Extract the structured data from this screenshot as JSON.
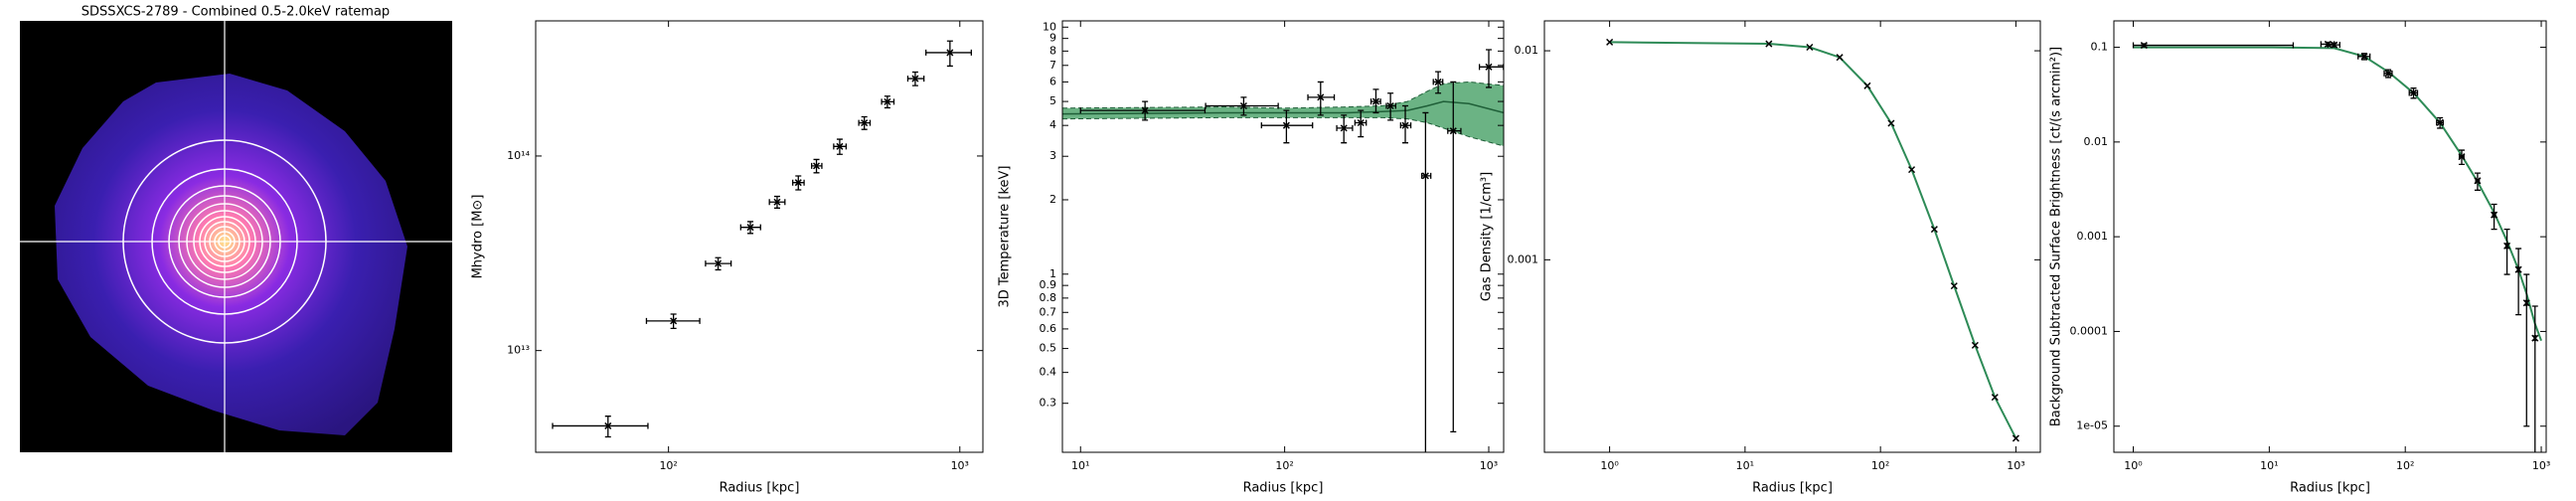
{
  "chart_data": [
    {
      "type": "image",
      "title": "SDSSXCS-2789 - Combined 0.5-2.0keV ratemap"
    },
    {
      "type": "scatter",
      "xlabel": "Radius [kpc]",
      "ylabel": "Mhydro [M⊙]",
      "xscale": "log",
      "yscale": "log",
      "color": "#000000",
      "xlim": [
        35,
        1200
      ],
      "ylim": [
        3000000000000.0,
        495000000000000.0
      ],
      "xticks": [
        {
          "value": 100,
          "label": "10²"
        },
        {
          "value": 1000,
          "label": "10³"
        }
      ],
      "yticks": [
        {
          "value": 10000000000000.0,
          "label": "10¹³"
        },
        {
          "value": 100000000000000.0,
          "label": "10¹⁴"
        }
      ],
      "x": [
        62,
        104,
        148,
        191,
        236,
        279,
        322,
        387,
        470,
        564,
        703,
        925
      ],
      "xerr": [
        [
          22,
          23
        ],
        [
          20,
          24
        ],
        [
          14,
          16
        ],
        [
          14,
          16
        ],
        [
          14,
          15
        ],
        [
          12,
          13
        ],
        [
          12,
          14
        ],
        [
          18,
          20
        ],
        [
          20,
          22
        ],
        [
          25,
          30
        ],
        [
          40,
          50
        ],
        [
          160,
          170
        ]
      ],
      "values": [
        4100000000000.0,
        14200000000000.0,
        28000000000000.0,
        43000000000000.0,
        58000000000000.0,
        73000000000000.0,
        89000000000000.0,
        112000000000000.0,
        148000000000000.0,
        190000000000000.0,
        250000000000000.0,
        340000000000000.0
      ],
      "yerr": [
        [
          500000000000.0,
          500000000000.0
        ],
        [
          1200000000000.0,
          1200000000000.0
        ],
        [
          2000000000000.0,
          2000000000000.0
        ],
        [
          3000000000000.0,
          3000000000000.0
        ],
        [
          4000000000000.0,
          4000000000000.0
        ],
        [
          6000000000000.0,
          6000000000000.0
        ],
        [
          7000000000000.0,
          7000000000000.0
        ],
        [
          10000000000000.0,
          10000000000000.0
        ],
        [
          11000000000000.0,
          11000000000000.0
        ],
        [
          13000000000000.0,
          13000000000000.0
        ],
        [
          20000000000000.0,
          20000000000000.0
        ],
        [
          50000000000000.0,
          50000000000000.0
        ]
      ]
    },
    {
      "type": "scatter",
      "xlabel": "Radius [kpc]",
      "ylabel": "3D Temperature [keV]",
      "xscale": "log",
      "yscale": "log",
      "color": "#000000",
      "xlim": [
        8.15,
        1183
      ],
      "ylim": [
        0.19,
        10.6
      ],
      "xticks": [
        {
          "value": 10,
          "label": "10¹"
        },
        {
          "value": 100,
          "label": "10²"
        },
        {
          "value": 1000,
          "label": "10³"
        }
      ],
      "yticks": [
        0.3,
        0.4,
        0.5,
        0.6,
        0.7,
        0.8,
        0.9,
        1,
        2,
        3,
        4,
        5,
        6,
        7,
        8,
        9,
        10
      ],
      "x": [
        20.7,
        63,
        102,
        150,
        195,
        236,
        280,
        330,
        390,
        490,
        565,
        670,
        1000
      ],
      "xerr": [
        [
          10.7,
          20
        ],
        [
          22,
          30
        ],
        [
          25,
          35
        ],
        [
          20,
          25
        ],
        [
          15,
          20
        ],
        [
          15,
          15
        ],
        [
          15,
          15
        ],
        [
          15,
          20
        ],
        [
          20,
          25
        ],
        [
          20,
          30
        ],
        [
          30,
          30
        ],
        [
          40,
          60
        ],
        [
          100,
          180
        ]
      ],
      "values": [
        4.6,
        4.8,
        4.0,
        5.2,
        3.9,
        4.1,
        5.0,
        4.8,
        4.0,
        2.5,
        6.0,
        3.8,
        6.9
      ],
      "yerr": [
        [
          0.4,
          0.4
        ],
        [
          0.4,
          0.4
        ],
        [
          0.6,
          0.6
        ],
        [
          0.8,
          0.8
        ],
        [
          0.5,
          0.5
        ],
        [
          0.5,
          0.5
        ],
        [
          0.5,
          0.6
        ],
        [
          0.6,
          0.6
        ],
        [
          0.6,
          0.8
        ],
        [
          2.4,
          2.0
        ],
        [
          0.6,
          0.6
        ],
        [
          3.57,
          2.2
        ],
        [
          1.2,
          1.2
        ]
      ],
      "band": {
        "color": "#3a9a5b",
        "x": [
          8.15,
          50,
          100,
          200,
          300,
          400,
          500,
          600,
          800,
          1183
        ],
        "lower": [
          4.25,
          4.3,
          4.3,
          4.3,
          4.3,
          4.25,
          4.1,
          3.9,
          3.6,
          3.3
        ],
        "median": [
          4.45,
          4.5,
          4.5,
          4.5,
          4.55,
          4.6,
          4.8,
          5.0,
          4.9,
          4.5
        ],
        "upper": [
          4.7,
          4.75,
          4.7,
          4.75,
          4.8,
          5.0,
          5.5,
          5.9,
          6.0,
          5.8
        ]
      }
    },
    {
      "type": "line",
      "xlabel": "Radius [kpc]",
      "ylabel": "Gas Density [1/cm³]",
      "xscale": "log",
      "yscale": "log",
      "color": "#2e8b57",
      "xlim": [
        0.33,
        1515
      ],
      "ylim": [
        0.00012,
        0.0139
      ],
      "xticks": [
        {
          "value": 1,
          "label": "10⁰"
        },
        {
          "value": 10,
          "label": "10¹"
        },
        {
          "value": 100,
          "label": "10²"
        },
        {
          "value": 1000,
          "label": "10³"
        }
      ],
      "yticks": [
        0.01,
        0.001
      ],
      "x": [
        1,
        15,
        30,
        50,
        80,
        120,
        170,
        250,
        350,
        500,
        700,
        1000
      ],
      "values": [
        0.011,
        0.0108,
        0.0104,
        0.0093,
        0.0068,
        0.0045,
        0.0027,
        0.0014,
        0.00075,
        0.00039,
        0.00022,
        0.00014
      ]
    },
    {
      "type": "scatter",
      "xlabel": "Radius [kpc]",
      "ylabel": "Background Subtracted Surface Brightness [ct/(s arcmin²)]",
      "xscale": "log",
      "yscale": "log",
      "color": "#000000",
      "xlim": [
        0.72,
        1087
      ],
      "ylim": [
        5.3e-06,
        0.19
      ],
      "xticks": [
        {
          "value": 1,
          "label": "10⁰"
        },
        {
          "value": 10,
          "label": "10¹"
        },
        {
          "value": 100,
          "label": "10²"
        },
        {
          "value": 1000,
          "label": "10³"
        }
      ],
      "yticks": [
        0.1,
        0.01,
        0.001,
        0.0001,
        {
          "value": 1e-05,
          "label": "1e-05"
        }
      ],
      "x": [
        1.2,
        27,
        30,
        50,
        75,
        115,
        180,
        260,
        340,
        450,
        560,
        680,
        780,
        900
      ],
      "xerr": [
        [
          0.2,
          13.8
        ],
        [
          3,
          3
        ],
        [
          3,
          3
        ],
        [
          5,
          5
        ],
        [
          5,
          5
        ],
        [
          8,
          8
        ],
        [
          10,
          10
        ],
        [
          10,
          10
        ],
        [
          10,
          10
        ],
        [
          10,
          10
        ],
        [
          10,
          10
        ],
        [
          10,
          10
        ],
        [
          10,
          10
        ],
        [
          10,
          10
        ]
      ],
      "values": [
        0.105,
        0.108,
        0.106,
        0.08,
        0.053,
        0.033,
        0.016,
        0.007,
        0.0039,
        0.0017,
        0.0008,
        0.00045,
        0.0002,
        8.5e-05
      ],
      "yerr": [
        [
          0.004,
          0.004
        ],
        [
          0.005,
          0.005
        ],
        [
          0.005,
          0.005
        ],
        [
          0.006,
          0.006
        ],
        [
          0.005,
          0.005
        ],
        [
          0.004,
          0.004
        ],
        [
          0.002,
          0.002
        ],
        [
          0.0012,
          0.0012
        ],
        [
          0.0008,
          0.0008
        ],
        [
          0.0005,
          0.0005
        ],
        [
          0.0004,
          0.0004
        ],
        [
          0.0003,
          0.0003
        ],
        [
          0.00019,
          0.0002
        ],
        [
          8e-05,
          0.0001
        ]
      ],
      "model": {
        "color": "#2e8b57",
        "x": [
          1,
          10,
          30,
          50,
          75,
          115,
          180,
          260,
          340,
          450,
          560,
          680,
          780,
          900,
          1000
        ],
        "values": [
          0.1,
          0.1,
          0.098,
          0.08,
          0.055,
          0.033,
          0.016,
          0.0072,
          0.0038,
          0.0018,
          0.0009,
          0.00045,
          0.00025,
          0.00012,
          8e-05
        ]
      }
    }
  ]
}
